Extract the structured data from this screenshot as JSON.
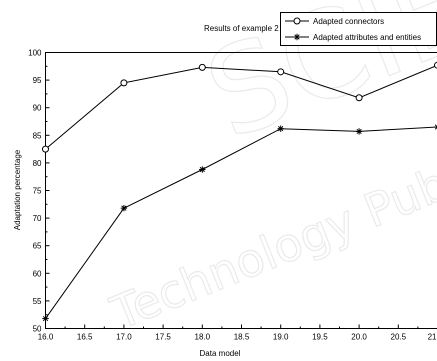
{
  "chart_data": {
    "type": "line",
    "title": "Results of example 2",
    "xlabel": "Data model",
    "ylabel": "Adaptation percentage",
    "xlim": [
      16.0,
      21.0
    ],
    "ylim": [
      50,
      100
    ],
    "x_ticks": [
      "16.0",
      "16.5",
      "17.0",
      "17.5",
      "18.0",
      "18.5",
      "19.0",
      "19.5",
      "20.0",
      "20.5",
      "21"
    ],
    "y_ticks": [
      "50",
      "55",
      "60",
      "65",
      "70",
      "75",
      "80",
      "85",
      "90",
      "95",
      "100"
    ],
    "x": [
      16.0,
      17.0,
      18.0,
      19.0,
      20.0,
      21.0
    ],
    "series": [
      {
        "name": "Adapted connectors",
        "marker": "circle",
        "values": [
          82.5,
          94.5,
          97.3,
          96.5,
          91.8,
          97.7
        ]
      },
      {
        "name": "Adapted attributes and entities",
        "marker": "star",
        "values": [
          51.8,
          71.8,
          78.8,
          86.2,
          85.7,
          86.5
        ]
      }
    ],
    "legend_position": "top-right",
    "grid": false
  },
  "watermark": {
    "text": [
      "SCIE",
      "Technology Publications"
    ]
  }
}
